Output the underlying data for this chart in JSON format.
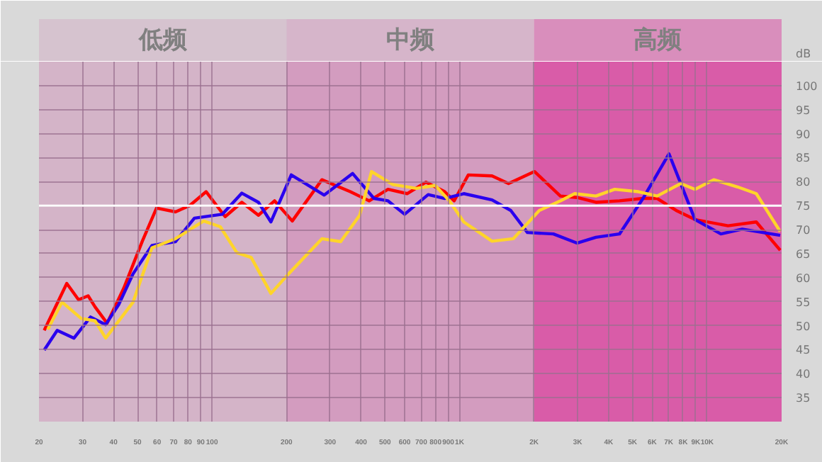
{
  "chart_data": {
    "type": "line",
    "ylabel": "dB",
    "log": "x",
    "grid": true,
    "xlim": [
      20,
      20000
    ],
    "ylim": [
      30,
      105
    ],
    "xticks": [
      20,
      30,
      40,
      50,
      60,
      70,
      80,
      90,
      100,
      200,
      300,
      400,
      500,
      600,
      700,
      800,
      900,
      {
        "value": 1000,
        "label": "1K"
      },
      {
        "value": 2000,
        "label": "2K"
      },
      {
        "value": 3000,
        "label": "3K"
      },
      {
        "value": 4000,
        "label": "4K"
      },
      {
        "value": 5000,
        "label": "5K"
      },
      {
        "value": 6000,
        "label": "6K"
      },
      {
        "value": 7000,
        "label": "7K"
      },
      {
        "value": 8000,
        "label": "8K"
      },
      {
        "value": 9000,
        "label": "9K"
      },
      {
        "value": 10000,
        "label": "10K"
      },
      {
        "value": 20000,
        "label": "20K"
      }
    ],
    "yticks": [
      35,
      40,
      45,
      50,
      55,
      60,
      65,
      70,
      75,
      80,
      85,
      90,
      95,
      100
    ],
    "bands": [
      {
        "axis": "x",
        "from": 20,
        "to": 200,
        "label": "低频",
        "color": "#d4b4c8"
      },
      {
        "axis": "x",
        "from": 200,
        "to": 2000,
        "label": "中频",
        "color": "#d39cbf"
      },
      {
        "axis": "x",
        "from": 2000,
        "to": 20000,
        "label": "高频",
        "color": "#d95ca8"
      }
    ],
    "ref_lines": [
      {
        "axis": "y",
        "value": 75,
        "color": "#ffffff"
      }
    ],
    "series": [
      {
        "color": "#ff0000",
        "x": [
          21,
          25.9,
          28.9,
          31.6,
          33.7,
          37.7,
          44,
          52.3,
          59.7,
          71.2,
          81.2,
          94.7,
          113,
          132,
          154,
          179,
          211,
          278,
          362,
          432,
          514,
          614,
          731,
          871,
          951,
          1085,
          1353,
          1577,
          2009,
          2554,
          2980,
          3556,
          4427,
          5510,
          6285,
          7499,
          8935,
          12150,
          15800,
          19740
        ],
        "values": [
          49.0,
          58.8,
          55.4,
          56.2,
          53.9,
          50.5,
          57.8,
          67.6,
          74.5,
          73.7,
          75.0,
          77.9,
          72.7,
          75.7,
          73.0,
          76.0,
          71.8,
          80.4,
          77.9,
          76.0,
          78.4,
          77.5,
          79.9,
          77.9,
          76.0,
          81.4,
          81.2,
          79.6,
          82.1,
          77.0,
          76.7,
          75.7,
          76.0,
          76.5,
          76.5,
          74.0,
          72.1,
          70.8,
          71.6,
          65.7
        ]
      },
      {
        "color": "#2a00ee",
        "x": [
          21,
          23.7,
          27.7,
          32.3,
          37.2,
          42,
          48,
          57.2,
          71.2,
          84.9,
          110,
          132,
          154,
          173,
          209,
          284,
          370,
          451,
          514,
          600,
          747,
          871,
          1040,
          1353,
          1610,
          1880,
          2393,
          2980,
          3556,
          4427,
          5510,
          7015,
          8935,
          11370,
          13870,
          19740
        ],
        "values": [
          44.9,
          49.0,
          47.4,
          51.8,
          50.2,
          54.4,
          60.8,
          66.7,
          67.5,
          72.4,
          73.2,
          77.6,
          75.7,
          71.6,
          81.4,
          77.2,
          81.7,
          76.5,
          76.0,
          73.2,
          77.3,
          76.5,
          77.5,
          76.2,
          74.0,
          69.4,
          69.1,
          67.2,
          68.4,
          69.1,
          76.5,
          85.8,
          72.1,
          69.1,
          70.1,
          68.8
        ]
      },
      {
        "color": "#ffd42a",
        "x": [
          21.7,
          24.8,
          29.6,
          33.7,
          37.2,
          48,
          57.2,
          71.2,
          92.6,
          108,
          126,
          144,
          173,
          204,
          278,
          331,
          395,
          441,
          537,
          669,
          798,
          910,
          1040,
          1353,
          1648,
          2100,
          2554,
          2918,
          3556,
          4234,
          5278,
          6285,
          7834,
          8935,
          10640,
          13270,
          15800,
          19740
        ],
        "values": [
          49.2,
          54.9,
          51.5,
          51.0,
          47.4,
          54.9,
          66.2,
          68.1,
          71.8,
          70.6,
          65.2,
          64.2,
          56.7,
          60.8,
          68.1,
          67.5,
          73.0,
          82.1,
          79.4,
          78.6,
          79.2,
          76.0,
          71.6,
          67.6,
          68.1,
          74.0,
          76.0,
          77.5,
          77.0,
          78.4,
          77.9,
          77.0,
          79.6,
          78.4,
          80.4,
          78.9,
          77.5,
          69.6
        ]
      }
    ]
  }
}
